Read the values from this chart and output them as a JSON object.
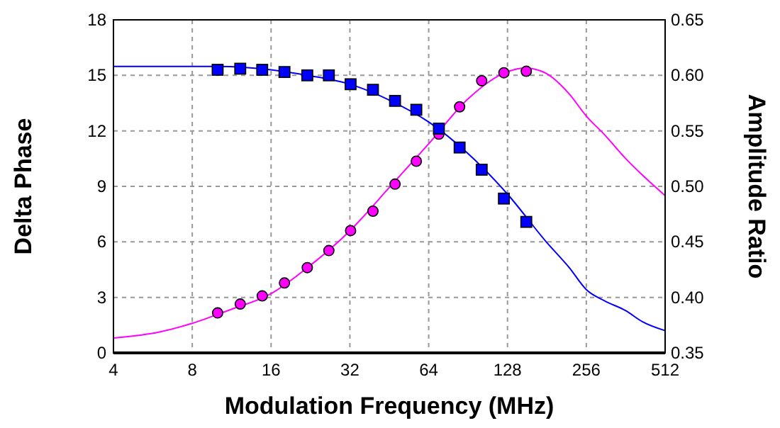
{
  "chart_data": {
    "type": "line",
    "xlabel": "Modulation Frequency (MHz)",
    "ylabel": "Delta Phase",
    "y2label": "Amplitude Ratio",
    "log": "x",
    "grid": true,
    "xlim": [
      4,
      512
    ],
    "xticks": [
      4,
      8,
      16,
      32,
      64,
      128,
      256,
      512
    ],
    "ylim": [
      0,
      18
    ],
    "yticks": [
      0,
      3,
      6,
      9,
      12,
      15,
      18
    ],
    "y2lim": [
      0.35,
      0.65
    ],
    "y2ticks": [
      {
        "value": 0.35,
        "label": "0.35"
      },
      {
        "value": 0.4,
        "label": "0.40"
      },
      {
        "value": 0.45,
        "label": "0.45"
      },
      {
        "value": 0.5,
        "label": "0.50"
      },
      {
        "value": 0.55,
        "label": "0.55"
      },
      {
        "value": 0.6,
        "label": "0.60"
      },
      {
        "value": 0.65,
        "label": "0.65"
      }
    ],
    "series": [
      {
        "color": "#ff00ff",
        "marker": "none",
        "x": [
          4,
          6,
          8,
          11,
          16,
          22,
          32,
          45,
          64,
          90,
          128,
          150,
          180,
          220,
          256,
          300,
          362,
          420,
          512
        ],
        "values": [
          0.8,
          1.13,
          1.6,
          2.3,
          3.2,
          4.6,
          6.6,
          8.9,
          11.3,
          13.7,
          15.2,
          15.4,
          15.1,
          14.0,
          12.8,
          11.8,
          10.5,
          9.6,
          8.5
        ]
      },
      {
        "color": "#0000ff",
        "marker": "none",
        "axis": "y2",
        "x": [
          4,
          8,
          10,
          16,
          22,
          32,
          45,
          64,
          90,
          128,
          180,
          220,
          256,
          300,
          362,
          420,
          512
        ],
        "values": [
          0.608,
          0.608,
          0.608,
          0.605,
          0.6,
          0.592,
          0.578,
          0.558,
          0.53,
          0.493,
          0.45,
          0.427,
          0.407,
          0.397,
          0.388,
          0.378,
          0.37
        ]
      },
      {
        "type": "scatter",
        "color": "#ff00ff",
        "marker": "circle",
        "x": [
          10,
          12.2,
          14.8,
          18,
          22,
          26.6,
          32.2,
          39.2,
          47.6,
          57.4,
          70,
          84,
          102,
          124,
          151
        ],
        "values": [
          2.16,
          2.64,
          3.08,
          3.78,
          4.61,
          5.53,
          6.61,
          7.66,
          9.12,
          10.36,
          11.82,
          13.3,
          14.71,
          15.14,
          15.22
        ]
      },
      {
        "type": "scatter",
        "color": "#0000ff",
        "marker": "square",
        "axis": "y2",
        "x": [
          10,
          12.2,
          14.8,
          18,
          22,
          26.6,
          32.2,
          39.2,
          47.6,
          57.4,
          70,
          84,
          102,
          124,
          151
        ],
        "values": [
          0.605,
          0.606,
          0.605,
          0.603,
          0.6,
          0.6,
          0.592,
          0.587,
          0.577,
          0.569,
          0.552,
          0.535,
          0.515,
          0.489,
          0.468
        ]
      }
    ]
  }
}
